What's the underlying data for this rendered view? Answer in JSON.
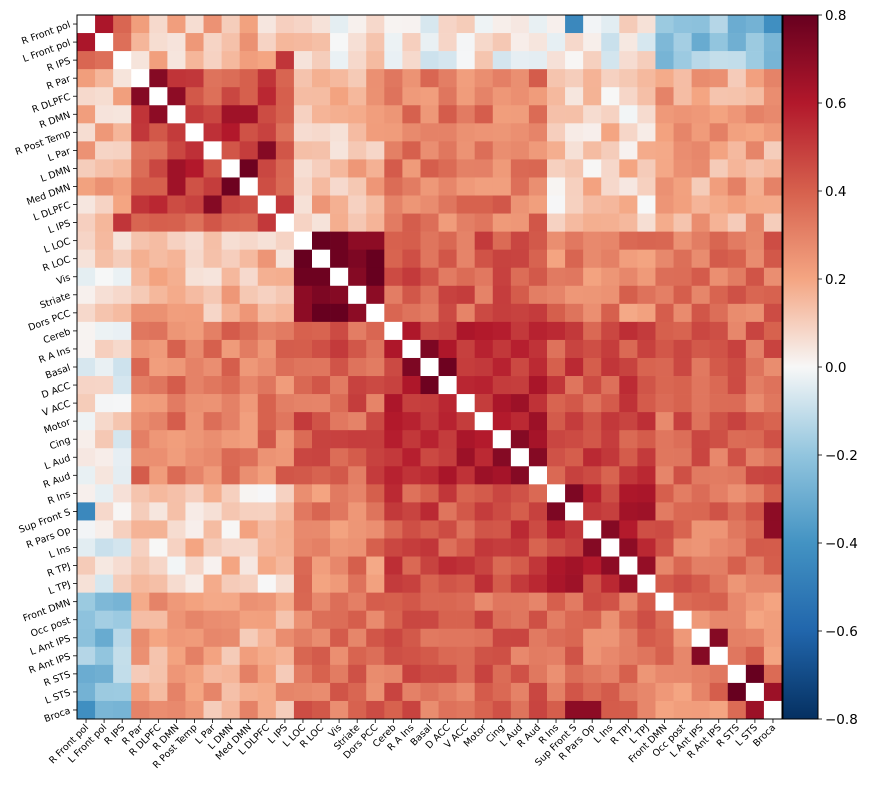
{
  "chart_data": {
    "type": "heatmap",
    "title": "",
    "xlabel": "",
    "ylabel": "",
    "colormap": "RdBu_r",
    "colors": {
      "neg_end": "#053061",
      "mid": "#f7f7f7",
      "pos_end": "#67001f"
    },
    "vmin": -0.8,
    "vmax": 0.8,
    "colorbar_ticks": [
      "-0.8",
      "-0.6",
      "-0.4",
      "-0.2",
      "0.0",
      "0.2",
      "0.4",
      "0.6",
      "0.8"
    ],
    "colorbar_tick_values": [
      -0.8,
      -0.6,
      -0.4,
      -0.2,
      0.0,
      0.2,
      0.4,
      0.6,
      0.8
    ],
    "diagonal": "white",
    "labels": [
      "R Front pol",
      "L Front pol",
      "R IPS",
      "R Par",
      "R DLPFC",
      "R DMN",
      "R Post Temp",
      "L Par",
      "L DMN",
      "Med DMN",
      "L DLPFC",
      "L IPS",
      "L LOC",
      "R LOC",
      "Vis",
      "Striate",
      "Dors PCC",
      "Cereb",
      "R A Ins",
      "Basal",
      "D ACC",
      "V ACC",
      "Motor",
      "Cing",
      "L Aud",
      "R Aud",
      "R Ins",
      "Sup Front S",
      "R Pars Op",
      "L Ins",
      "R TPJ",
      "L TPJ",
      "Front DMN",
      "Occ post",
      "L Ant IPS",
      "R Ant IPS",
      "R STS",
      "L STS",
      "Broca"
    ],
    "groups": [
      [
        0,
        1,
        2
      ],
      [
        3,
        4,
        5,
        6,
        7,
        8,
        9,
        10,
        11
      ],
      [
        12,
        13,
        14,
        15,
        16
      ],
      [
        17,
        18,
        19,
        20,
        21,
        22,
        23,
        24,
        25
      ],
      [
        26,
        27,
        28,
        29,
        30,
        31
      ],
      [
        32,
        33,
        34,
        35,
        36,
        37,
        38
      ]
    ],
    "group_base": [
      [
        0.4,
        0.15,
        0.05,
        0.02,
        0.0,
        -0.2
      ],
      [
        0.15,
        0.45,
        0.15,
        0.32,
        0.1,
        0.2
      ],
      [
        0.05,
        0.15,
        0.7,
        0.4,
        0.3,
        0.35
      ],
      [
        0.02,
        0.32,
        0.4,
        0.55,
        0.45,
        0.38
      ],
      [
        0.0,
        0.1,
        0.3,
        0.45,
        0.55,
        0.35
      ],
      [
        -0.2,
        0.2,
        0.35,
        0.38,
        0.35,
        0.3
      ]
    ],
    "strong_pairs": [
      {
        "a": "R Par",
        "b": "R DLPFC",
        "value": 0.72
      },
      {
        "a": "R DLPFC",
        "b": "R DMN",
        "value": 0.7
      },
      {
        "a": "L DMN",
        "b": "Med DMN",
        "value": 0.78
      },
      {
        "a": "L Par",
        "b": "L DLPFC",
        "value": 0.72
      },
      {
        "a": "R DMN",
        "b": "L DMN",
        "value": 0.65
      },
      {
        "a": "R DMN",
        "b": "Med DMN",
        "value": 0.65
      },
      {
        "a": "R Post Temp",
        "b": "L DMN",
        "value": 0.6
      },
      {
        "a": "R IPS",
        "b": "L IPS",
        "value": 0.52
      },
      {
        "a": "L LOC",
        "b": "R LOC",
        "value": 0.8
      },
      {
        "a": "L LOC",
        "b": "Vis",
        "value": 0.78
      },
      {
        "a": "R LOC",
        "b": "Vis",
        "value": 0.78
      },
      {
        "a": "R LOC",
        "b": "Striate",
        "value": 0.74
      },
      {
        "a": "Vis",
        "b": "Striate",
        "value": 0.72
      },
      {
        "a": "L LOC",
        "b": "Striate",
        "value": 0.7
      },
      {
        "a": "Basal",
        "b": "D ACC",
        "value": 0.78
      },
      {
        "a": "R A Ins",
        "b": "Basal",
        "value": 0.74
      },
      {
        "a": "Cing",
        "b": "L Aud",
        "value": 0.72
      },
      {
        "a": "L Aud",
        "b": "R Aud",
        "value": 0.72
      },
      {
        "a": "R Ins",
        "b": "Sup Front S",
        "value": 0.74
      },
      {
        "a": "R Pars Op",
        "b": "L Ins",
        "value": 0.72
      },
      {
        "a": "L Ins",
        "b": "R TPJ",
        "value": 0.7
      },
      {
        "a": "R TPJ",
        "b": "L TPJ",
        "value": 0.68
      },
      {
        "a": "L Ant IPS",
        "b": "R Ant IPS",
        "value": 0.72
      },
      {
        "a": "R STS",
        "b": "L STS",
        "value": 0.8
      },
      {
        "a": "Broca",
        "b": "L STS",
        "value": 0.66
      },
      {
        "a": "R Front pol",
        "b": "L Front pol",
        "value": 0.62
      },
      {
        "a": "Sup Front S",
        "b": "Broca",
        "value": 0.7
      },
      {
        "a": "R Pars Op",
        "b": "Broca",
        "value": 0.7
      },
      {
        "a": "R Front pol",
        "b": "Broca",
        "value": -0.42
      },
      {
        "a": "R Front pol",
        "b": "Sup Front S",
        "value": -0.45
      }
    ]
  }
}
